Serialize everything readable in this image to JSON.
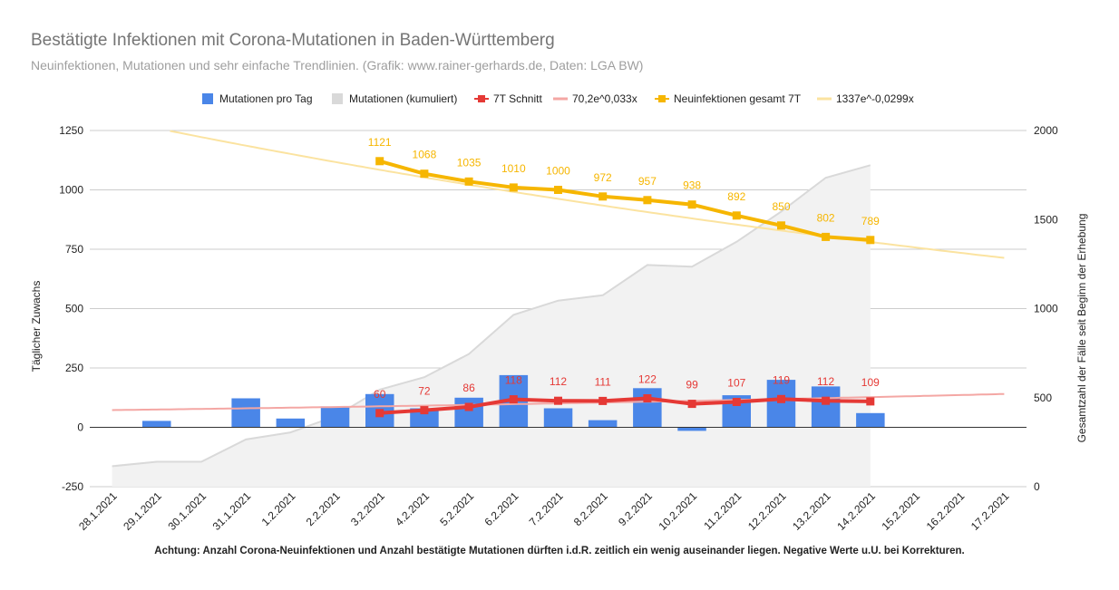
{
  "title": "Bestätigte Infektionen mit Corona-Mutationen in Baden-Württemberg",
  "subtitle": "Neuinfektionen, Mutationen und sehr einfache Trendlinien.  (Grafik: www.rainer-gerhards.de, Daten: LGA BW)",
  "note": "Achtung: Anzahl Corona-Neuinfektionen und Anzahl bestätigte Mutationen dürften i.d.R. zeitlich ein wenig auseinander liegen. Negative Werte u.U. bei Korrekturen.",
  "colors": {
    "bars": "#4a86e8",
    "cumulative": "#d9d9d9",
    "avg": "#e53935",
    "avg_trend": "#f4a7a4",
    "total": "#f6b600",
    "total_trend": "#fbe3a0"
  },
  "chart_data": {
    "type": "bar",
    "categories": [
      "28.1.2021",
      "29.1.2021",
      "30.1.2021",
      "31.1.2021",
      "1.2.2021",
      "2.2.2021",
      "3.2.2021",
      "4.2.2021",
      "5.2.2021",
      "6.2.2021",
      "7.2.2021",
      "8.2.2021",
      "9.2.2021",
      "10.2.2021",
      "11.2.2021",
      "12.2.2021",
      "13.2.2021",
      "14.2.2021",
      "15.2.2021",
      "16.2.2021",
      "17.2.2021"
    ],
    "ylabel": "Täglicher Zuwachs",
    "y2label": "Gesamtzahl der Fälle seit Beginn der Erhebung",
    "ylim": [
      -250,
      1250
    ],
    "y2lim": [
      0,
      2000
    ],
    "yticks": [
      "-250",
      "0",
      "250",
      "500",
      "750",
      "1000",
      "1250"
    ],
    "y2ticks": [
      "0",
      "500",
      "1000",
      "1500",
      "2000"
    ],
    "legend_position": "top",
    "grid": true,
    "series": [
      {
        "name": "Mutationen pro Tag",
        "kind": "bar",
        "axis": "left",
        "values": [
          null,
          27,
          null,
          122,
          37,
          88,
          140,
          80,
          125,
          220,
          80,
          30,
          165,
          -15,
          135,
          200,
          172,
          60,
          null,
          null,
          null
        ]
      },
      {
        "name": "Mutationen (kumuliert)",
        "kind": "area",
        "axis": "right",
        "values": [
          115,
          140,
          140,
          265,
          305,
          395,
          545,
          615,
          745,
          965,
          1045,
          1075,
          1245,
          1235,
          1375,
          1545,
          1735,
          1805,
          null,
          null,
          null
        ]
      },
      {
        "name": "7T Schnitt",
        "kind": "line",
        "axis": "left",
        "values": [
          null,
          null,
          null,
          null,
          null,
          null,
          60,
          72,
          86,
          118,
          112,
          111,
          122,
          99,
          107,
          119,
          112,
          109,
          null,
          null,
          null
        ],
        "labels": [
          "",
          "",
          "",
          "",
          "",
          "",
          "60",
          "72",
          "86",
          "118",
          "112",
          "111",
          "122",
          "99",
          "107",
          "119",
          "112",
          "109",
          "",
          "",
          ""
        ]
      },
      {
        "name": "70,2e^0,033x",
        "kind": "trend",
        "axis": "left",
        "a": 70.2,
        "b": 0.033
      },
      {
        "name": "Neuinfektionen gesamt 7T",
        "kind": "line",
        "axis": "left",
        "values": [
          null,
          null,
          null,
          null,
          null,
          null,
          1121,
          1068,
          1035,
          1010,
          1000,
          972,
          957,
          938,
          892,
          850,
          802,
          789,
          null,
          null,
          null
        ],
        "labels": [
          "",
          "",
          "",
          "",
          "",
          "",
          "1121",
          "1068",
          "1035",
          "1010",
          "1000",
          "972",
          "957",
          "938",
          "892",
          "850",
          "802",
          "789",
          "",
          "",
          ""
        ]
      },
      {
        "name": "1337e^-0,0299x",
        "kind": "trend",
        "axis": "left",
        "a": 1337,
        "b": -0.0299
      }
    ]
  }
}
